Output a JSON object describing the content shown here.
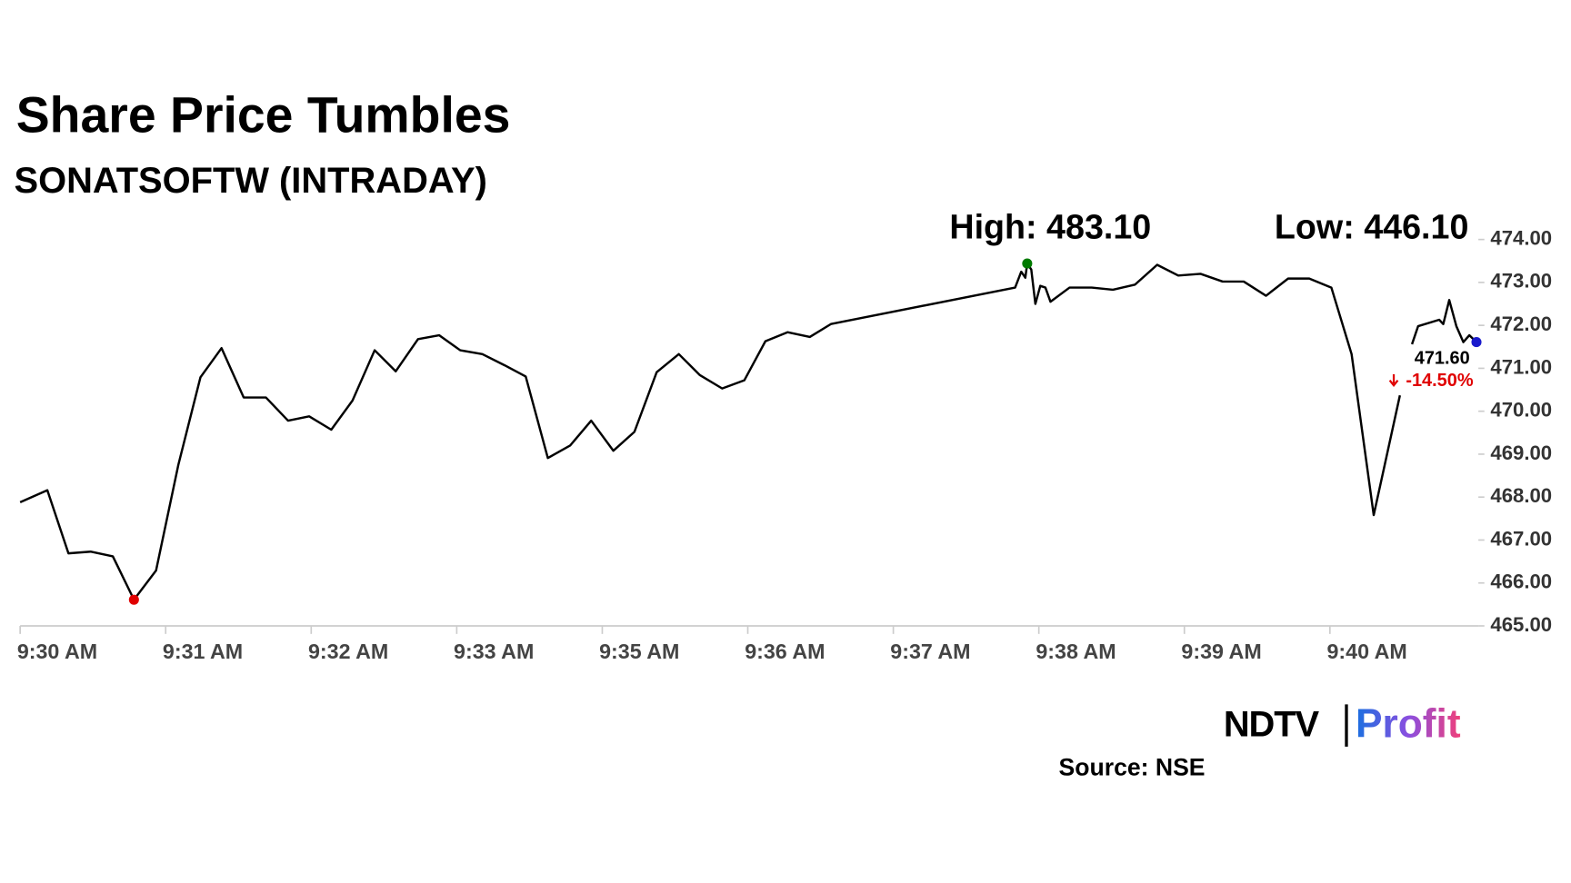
{
  "chart_data": {
    "type": "line",
    "title": "Share Price Tumbles",
    "subtitle": "SONATSOFTW (INTRADAY)",
    "high_label": "High: 483.10",
    "low_label": "Low: 446.10",
    "last_price_label": "471.60",
    "change_label": "-14.50%",
    "source": "Source: NSE",
    "logo": {
      "left": "NDTV",
      "right": "Profit"
    },
    "color": "#000000",
    "low_marker_color": "#e00000",
    "high_marker_color": "#007a00",
    "last_marker_color": "#1a1acc",
    "change_color": "#e00000",
    "x": [
      0,
      0.187,
      0.332,
      0.484,
      0.637,
      0.782,
      0.934,
      1.087,
      1.239,
      1.384,
      1.536,
      1.689,
      1.841,
      1.986,
      2.138,
      2.284,
      2.436,
      2.581,
      2.734,
      2.879,
      3.024,
      3.176,
      3.329,
      3.474,
      3.626,
      3.779,
      3.924,
      4.076,
      4.221,
      4.374,
      4.526,
      4.671,
      4.824,
      4.976,
      5.121,
      5.273,
      5.426,
      5.571,
      6.837,
      6.879,
      6.907,
      6.92,
      6.948,
      6.976,
      7.01,
      7.045,
      7.08,
      7.211,
      7.363,
      7.509,
      7.661,
      7.813,
      7.958,
      8.111,
      8.263,
      8.408,
      8.561,
      8.713,
      8.858,
      9.01,
      9.149,
      9.301,
      9.481,
      9.522,
      9.564,
      9.606,
      9.751,
      9.779,
      9.82,
      9.869,
      9.917,
      9.958,
      10.007
    ],
    "values": [
      467.88,
      468.16,
      466.69,
      466.73,
      466.62,
      465.61,
      466.29,
      468.75,
      470.79,
      471.47,
      470.32,
      470.32,
      469.78,
      469.88,
      469.57,
      470.25,
      471.42,
      470.93,
      471.68,
      471.77,
      471.42,
      471.33,
      471.07,
      470.81,
      468.91,
      469.2,
      469.78,
      469.08,
      469.52,
      470.91,
      471.33,
      470.84,
      470.53,
      470.72,
      471.63,
      471.84,
      471.73,
      472.03,
      472.88,
      473.25,
      473.11,
      473.44,
      473.3,
      472.5,
      472.92,
      472.88,
      472.55,
      472.88,
      472.88,
      472.83,
      472.95,
      473.41,
      473.16,
      473.2,
      473.02,
      473.02,
      472.69,
      473.09,
      473.09,
      472.88,
      471.33,
      467.58,
      470.37,
      null,
      471.56,
      471.98,
      472.13,
      472.03,
      472.59,
      471.98,
      471.61,
      471.77,
      471.61
    ],
    "xlim": [
      0,
      10.02
    ],
    "ylim": [
      465,
      474
    ],
    "xticks": [
      {
        "value": 0,
        "label": "9:30 AM"
      },
      {
        "value": 1,
        "label": "9:31 AM"
      },
      {
        "value": 2,
        "label": "9:32 AM"
      },
      {
        "value": 3,
        "label": "9:33 AM"
      },
      {
        "value": 4,
        "label": "9:35 AM"
      },
      {
        "value": 5,
        "label": "9:36 AM"
      },
      {
        "value": 6,
        "label": "9:37 AM"
      },
      {
        "value": 7,
        "label": "9:38 AM"
      },
      {
        "value": 8,
        "label": "9:39 AM"
      },
      {
        "value": 9,
        "label": "9:40 AM"
      }
    ],
    "yticks": [
      {
        "value": 465,
        "label": "465.00"
      },
      {
        "value": 466,
        "label": "466.00"
      },
      {
        "value": 467,
        "label": "467.00"
      },
      {
        "value": 468,
        "label": "468.00"
      },
      {
        "value": 469,
        "label": "469.00"
      },
      {
        "value": 470,
        "label": "470.00"
      },
      {
        "value": 471,
        "label": "471.00"
      },
      {
        "value": 472,
        "label": "472.00"
      },
      {
        "value": 473,
        "label": "473.00"
      },
      {
        "value": 474,
        "label": "474.00"
      }
    ]
  }
}
